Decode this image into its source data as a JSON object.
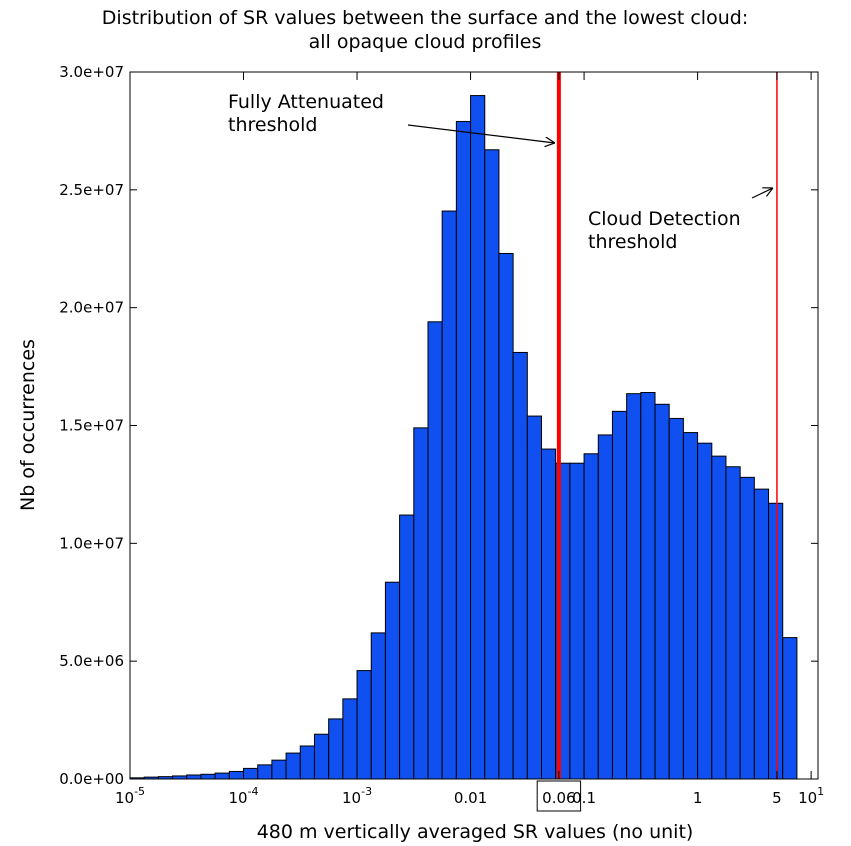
{
  "chart_data": {
    "type": "histogram",
    "title": [
      "Distribution of SR values between the surface and the lowest cloud:",
      "all opaque cloud profiles"
    ],
    "xlabel": "480 m vertically averaged SR values (no unit)",
    "ylabel": "Nb of occurrences",
    "xscale": "log",
    "color": "#1150f0",
    "edgecolor": "#000000",
    "bins": [
      1e-05,
      1.334e-05,
      1.778e-05,
      2.371e-05,
      3.162e-05,
      4.217e-05,
      5.623e-05,
      7.499e-05,
      0.0001,
      0.0001334,
      0.0001778,
      0.0002371,
      0.0003162,
      0.0004217,
      0.0005623,
      0.0007499,
      0.001,
      0.001334,
      0.001778,
      0.002371,
      0.003162,
      0.004217,
      0.005623,
      0.007499,
      0.01,
      0.01334,
      0.01778,
      0.02371,
      0.03162,
      0.04217,
      0.05623,
      0.07499,
      0.1,
      0.1334,
      0.1778,
      0.2371,
      0.3162,
      0.4217,
      0.5623,
      0.7499,
      1,
      1.334,
      1.778,
      2.371,
      3.162,
      4.217,
      5.623,
      7.499
    ],
    "values": [
      50000,
      80000,
      100000,
      130000,
      170000,
      200000,
      250000,
      320000,
      450000,
      600000,
      800000,
      1100000,
      1400000,
      1900000,
      2550000,
      3400000,
      4600000,
      6200000,
      8350000,
      11200000,
      14900000,
      19400000,
      24100000,
      27900000,
      29000000,
      26700000,
      22300000,
      18100000,
      15400000,
      14000000,
      13400000,
      13400000,
      13800000,
      14600000,
      15600000,
      16350000,
      16400000,
      15900000,
      15300000,
      14700000,
      14250000,
      13700000,
      13250000,
      12800000,
      12300000,
      11700000,
      6000000
    ],
    "xlim": [
      1e-05,
      11.5
    ],
    "ylim": [
      0,
      30000000
    ],
    "xticks": [
      {
        "value": 1e-05,
        "label": "10",
        "sup": "-5"
      },
      {
        "value": 0.0001,
        "label": "10",
        "sup": "-4"
      },
      {
        "value": 0.001,
        "label": "10",
        "sup": "-3"
      },
      0.01,
      {
        "value": 0.06,
        "label": "0.06",
        "boxed": true
      },
      0.1,
      1,
      5,
      {
        "value": 10,
        "label": "10",
        "sup": "1"
      }
    ],
    "yticks": [
      {
        "value": 0,
        "label": "0.0e+00"
      },
      {
        "value": 5000000,
        "label": "5.0e+06"
      },
      {
        "value": 10000000,
        "label": "1.0e+07"
      },
      {
        "value": 15000000,
        "label": "1.5e+07"
      },
      {
        "value": 20000000,
        "label": "2.0e+07"
      },
      {
        "value": 25000000,
        "label": "2.5e+07"
      },
      {
        "value": 30000000,
        "label": "3.0e+07"
      }
    ],
    "vlines": [
      {
        "x": 0.06,
        "color": "#ff0000",
        "width": 4
      },
      {
        "x": 5,
        "color": "#ff0000",
        "width": 1.5
      }
    ],
    "annotations": [
      {
        "text": [
          "Fully Attenuated",
          "threshold"
        ],
        "target": 0.06
      },
      {
        "text": [
          "Cloud Detection",
          "threshold"
        ],
        "target": 5
      }
    ]
  }
}
